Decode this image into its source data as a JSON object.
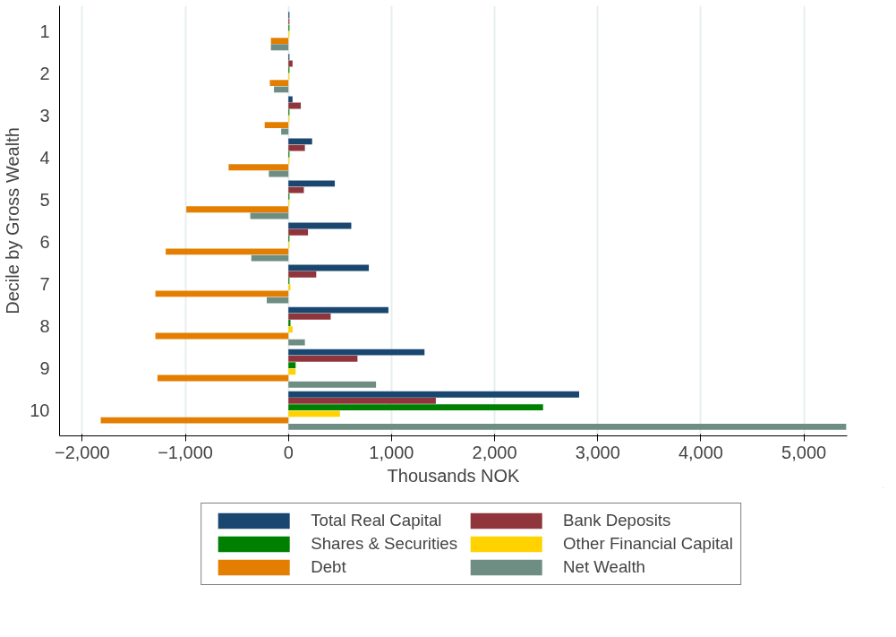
{
  "chart_data": {
    "type": "bar",
    "orientation": "horizontal",
    "xlabel": "Thousands NOK",
    "ylabel": "Decile by Gross Wealth",
    "categories": [
      "1",
      "2",
      "3",
      "4",
      "5",
      "6",
      "7",
      "8",
      "9",
      "10"
    ],
    "series": [
      {
        "name": "Total Real Capital",
        "color": "#1a476f",
        "values": [
          10,
          10,
          40,
          230,
          450,
          610,
          780,
          970,
          1320,
          2820
        ]
      },
      {
        "name": "Bank Deposits",
        "color": "#90353b",
        "values": [
          10,
          40,
          120,
          160,
          150,
          190,
          270,
          410,
          670,
          1430
        ]
      },
      {
        "name": "Shares & Securities",
        "color": "#008000",
        "values": [
          10,
          10,
          10,
          10,
          10,
          10,
          10,
          20,
          70,
          2470
        ]
      },
      {
        "name": "Other Financial Capital",
        "color": "#ffd200",
        "values": [
          10,
          10,
          10,
          10,
          10,
          10,
          20,
          40,
          70,
          500
        ]
      },
      {
        "name": "Debt",
        "color": "#e37e00",
        "values": [
          -170,
          -180,
          -230,
          -580,
          -990,
          -1190,
          -1290,
          -1290,
          -1270,
          -1820
        ]
      },
      {
        "name": "Net Wealth",
        "color": "#6e8e84",
        "values": [
          -170,
          -140,
          -70,
          -190,
          -370,
          -360,
          -210,
          160,
          850,
          5410
        ]
      }
    ],
    "xlim": [
      -2220,
      5420
    ],
    "xticks": [
      {
        "value": -2000,
        "label": "−2,000"
      },
      {
        "value": -1000,
        "label": "−1,000"
      },
      0,
      {
        "value": 1000,
        "label": "1,000"
      },
      {
        "value": 2000,
        "label": "2,000"
      },
      {
        "value": 3000,
        "label": "3,000"
      },
      {
        "value": 4000,
        "label": "4,000"
      },
      {
        "value": 5000,
        "label": "5,000"
      }
    ],
    "grid": "x",
    "legend": "bottom"
  }
}
